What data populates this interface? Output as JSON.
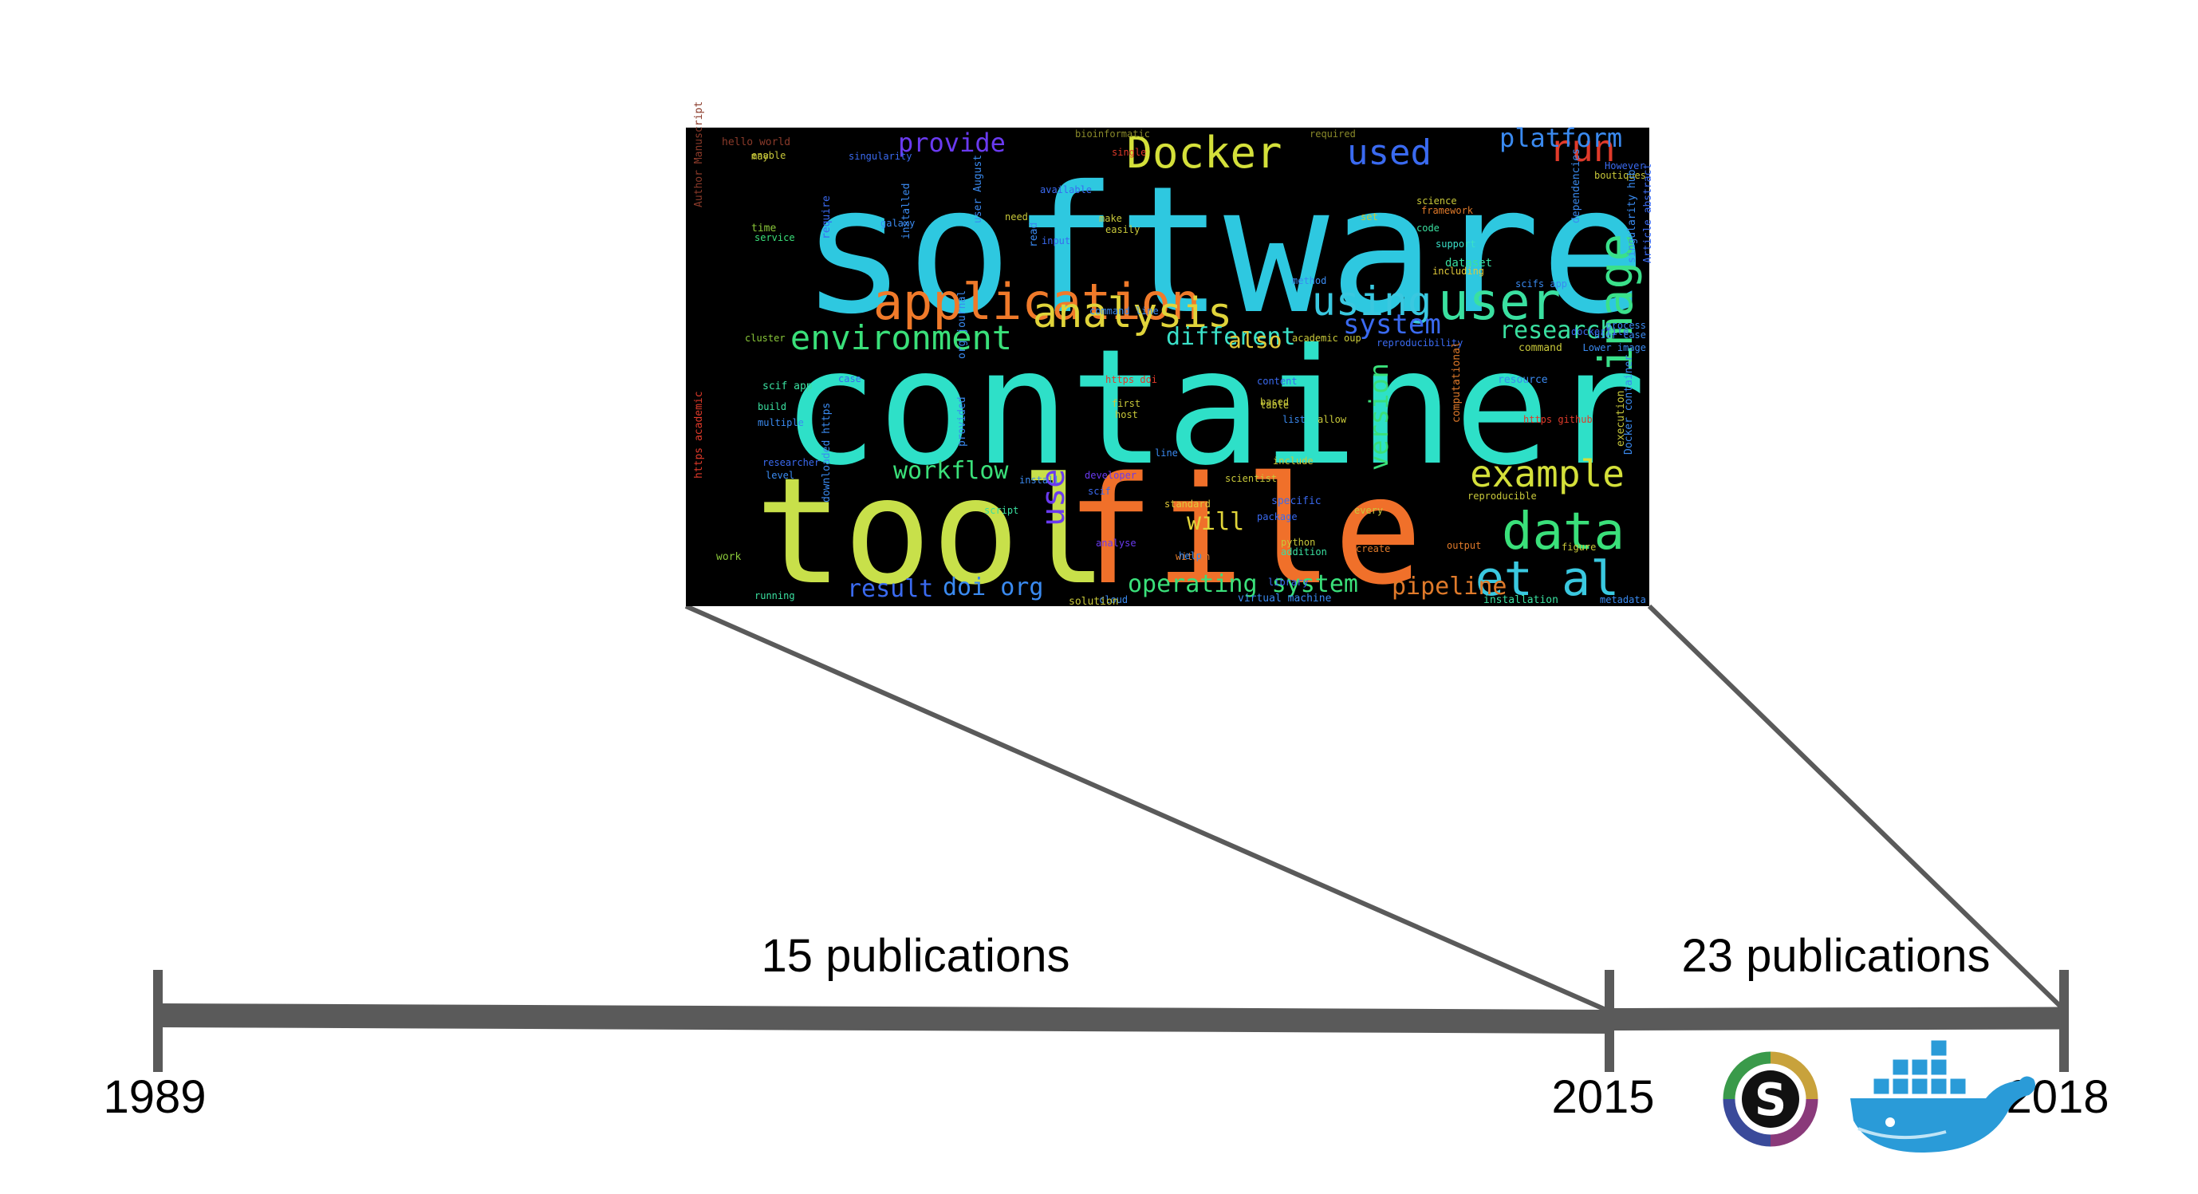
{
  "timeline": {
    "years": {
      "start": "1989",
      "middle": "2015",
      "end": "2018"
    },
    "segments": [
      {
        "label": "15 publications"
      },
      {
        "label": "23 publications"
      }
    ],
    "line_color": "#5a5a5a"
  },
  "logos": [
    {
      "name": "singularity-logo",
      "letter": "S"
    },
    {
      "name": "docker-logo"
    }
  ],
  "word_cloud": {
    "background": "#000000",
    "words": [
      {
        "text": "software",
        "color": "#2ec8e0"
      },
      {
        "text": "container",
        "color": "#2ee0c8"
      },
      {
        "text": "tool",
        "color": "#c8e04a"
      },
      {
        "text": "file",
        "color": "#f0702a"
      },
      {
        "text": "application",
        "color": "#f07a2a"
      },
      {
        "text": "analysis",
        "color": "#e0d43a"
      },
      {
        "text": "Docker",
        "color": "#d4e03a"
      },
      {
        "text": "user",
        "color": "#3ae0a0"
      },
      {
        "text": "using",
        "color": "#3ac8e0"
      },
      {
        "text": "image",
        "color": "#3ae08a"
      },
      {
        "text": "data",
        "color": "#3ae07a"
      },
      {
        "text": "et al",
        "color": "#3ac8e0"
      },
      {
        "text": "example",
        "color": "#d4e03a"
      },
      {
        "text": "environment",
        "color": "#3ae07a"
      },
      {
        "text": "used",
        "color": "#3a6af0"
      },
      {
        "text": "run",
        "color": "#e03a2a"
      },
      {
        "text": "platform",
        "color": "#3a8af0"
      },
      {
        "text": "provide",
        "color": "#6a3af0"
      },
      {
        "text": "system",
        "color": "#3a6af0"
      },
      {
        "text": "research",
        "color": "#3ae0a0"
      },
      {
        "text": "different",
        "color": "#3ae0c8"
      },
      {
        "text": "also",
        "color": "#e0c83a"
      },
      {
        "text": "workflow",
        "color": "#3ae07a"
      },
      {
        "text": "version",
        "color": "#3ae07a"
      },
      {
        "text": "use",
        "color": "#6a3af0"
      },
      {
        "text": "will",
        "color": "#e0d43a"
      },
      {
        "text": "pipeline",
        "color": "#e07a2a"
      },
      {
        "text": "operating system",
        "color": "#3ae07a"
      },
      {
        "text": "doi org",
        "color": "#3a8af0"
      },
      {
        "text": "result",
        "color": "#3a6af0"
      },
      {
        "text": "hello world",
        "color": "#8a3a2a"
      },
      {
        "text": "bioinformatic",
        "color": "#8a8a2a"
      },
      {
        "text": "required",
        "color": "#8a8a2a"
      },
      {
        "text": "singularity",
        "color": "#3a6af0"
      },
      {
        "text": "available",
        "color": "#3a6af0"
      },
      {
        "text": "galaxy",
        "color": "#3a8af0"
      },
      {
        "text": "time",
        "color": "#8ac83a"
      },
      {
        "text": "service",
        "color": "#3ae07a"
      },
      {
        "text": "need",
        "color": "#c8c83a"
      },
      {
        "text": "make",
        "color": "#c8c83a"
      },
      {
        "text": "easily",
        "color": "#c8c83a"
      },
      {
        "text": "input",
        "color": "#3a6af0"
      },
      {
        "text": "science",
        "color": "#c8c83a"
      },
      {
        "text": "framework",
        "color": "#e07a2a"
      },
      {
        "text": "support",
        "color": "#3ae0c8"
      },
      {
        "text": "dataset",
        "color": "#3ae0a0"
      },
      {
        "text": "including",
        "color": "#e0c83a"
      },
      {
        "text": "method",
        "color": "#3a8af0"
      },
      {
        "text": "command line",
        "color": "#3a8af0"
      },
      {
        "text": "cluster",
        "color": "#8ac83a"
      },
      {
        "text": "scif app",
        "color": "#3ae0a0"
      },
      {
        "text": "build",
        "color": "#3ae0a0"
      },
      {
        "text": "multiple",
        "color": "#3a8af0"
      },
      {
        "text": "https doi",
        "color": "#e03a2a"
      },
      {
        "text": "first",
        "color": "#c8c83a"
      },
      {
        "text": "content",
        "color": "#3a6af0"
      },
      {
        "text": "based",
        "color": "#c8c83a"
      },
      {
        "text": "table",
        "color": "#c8c83a"
      },
      {
        "text": "allow",
        "color": "#c8c83a"
      },
      {
        "text": "https github",
        "color": "#e03a2a"
      },
      {
        "text": "reproducibility",
        "color": "#3a6af0"
      },
      {
        "text": "command",
        "color": "#c8c83a"
      },
      {
        "text": "researcher",
        "color": "#3a6af0"
      },
      {
        "text": "developer",
        "color": "#6a3af0"
      },
      {
        "text": "scientist",
        "color": "#c8c83a"
      },
      {
        "text": "include",
        "color": "#c8c83a"
      },
      {
        "text": "install",
        "color": "#3a8af0"
      },
      {
        "text": "script",
        "color": "#3ae0a0"
      },
      {
        "text": "standard",
        "color": "#e0c83a"
      },
      {
        "text": "specific",
        "color": "#3a6af0"
      },
      {
        "text": "package",
        "color": "#3a6af0"
      },
      {
        "text": "python",
        "color": "#c8c83a"
      },
      {
        "text": "addition",
        "color": "#3ae0a0"
      },
      {
        "text": "create",
        "color": "#e07a2a"
      },
      {
        "text": "output",
        "color": "#e07a2a"
      },
      {
        "text": "reproducible",
        "color": "#c8c83a"
      },
      {
        "text": "analyse",
        "color": "#6a3af0"
      },
      {
        "text": "within",
        "color": "#e07a2a"
      },
      {
        "text": "help",
        "color": "#3a8af0"
      },
      {
        "text": "cloud",
        "color": "#3a8af0"
      },
      {
        "text": "solution",
        "color": "#c8c83a"
      },
      {
        "text": "virtual machine",
        "color": "#3a8af0"
      },
      {
        "text": "installation",
        "color": "#3ae0a0"
      },
      {
        "text": "metadata",
        "color": "#3a8af0"
      },
      {
        "text": "work",
        "color": "#8ac83a"
      },
      {
        "text": "running",
        "color": "#3ae0a0"
      },
      {
        "text": "library",
        "color": "#3a6af0"
      },
      {
        "text": "figure",
        "color": "#c8c83a"
      },
      {
        "text": "boutiques",
        "color": "#c8c83a"
      },
      {
        "text": "However",
        "color": "#3a6af0"
      },
      {
        "text": "enable",
        "color": "#c8c83a"
      },
      {
        "text": "may",
        "color": "#c8c83a"
      },
      {
        "text": "code",
        "color": "#3ae0a0"
      },
      {
        "text": "set",
        "color": "#c8c83a"
      },
      {
        "text": "academic oup",
        "color": "#c8c83a"
      },
      {
        "text": "single",
        "color": "#e03a2a"
      },
      {
        "text": "process",
        "color": "#3a8af0"
      },
      {
        "text": "user case",
        "color": "#3a8af0"
      },
      {
        "text": "level",
        "color": "#3a8af0"
      },
      {
        "text": "host",
        "color": "#c8c83a"
      },
      {
        "text": "list",
        "color": "#3a8af0"
      },
      {
        "text": "every",
        "color": "#c8c83a"
      },
      {
        "text": "scif",
        "color": "#3a6af0"
      },
      {
        "text": "Author Manuscript",
        "color": "#8a3a2a"
      },
      {
        "text": "https academic",
        "color": "#e03a2a"
      },
      {
        "text": "downloaded https",
        "color": "#3a8af0"
      },
      {
        "text": "dependencies",
        "color": "#3a8af0"
      },
      {
        "text": "execution",
        "color": "#c8c83a"
      },
      {
        "text": "Docker container",
        "color": "#3a8af0"
      },
      {
        "text": "computational",
        "color": "#e07a2a"
      },
      {
        "text": "Article abstract",
        "color": "#3a6af0"
      },
      {
        "text": "singularity hub",
        "color": "#3a8af0"
      },
      {
        "text": "user August",
        "color": "#3a8af0"
      },
      {
        "text": "provided",
        "color": "#3a8af0"
      },
      {
        "text": "installed",
        "color": "#3a8af0"
      },
      {
        "text": "org journal",
        "color": "#3a8af0"
      },
      {
        "text": "read",
        "color": "#3a8af0"
      },
      {
        "text": "require",
        "color": "#3a6af0"
      },
      {
        "text": "scifs app",
        "color": "#3a8af0"
      },
      {
        "text": "resource",
        "color": "#3a8af0"
      },
      {
        "text": "dockerfile",
        "color": "#3a6af0"
      },
      {
        "text": "Lower image",
        "color": "#3a8af0"
      },
      {
        "text": "line",
        "color": "#3a8af0"
      },
      {
        "text": "case",
        "color": "#3a6af0"
      }
    ]
  }
}
